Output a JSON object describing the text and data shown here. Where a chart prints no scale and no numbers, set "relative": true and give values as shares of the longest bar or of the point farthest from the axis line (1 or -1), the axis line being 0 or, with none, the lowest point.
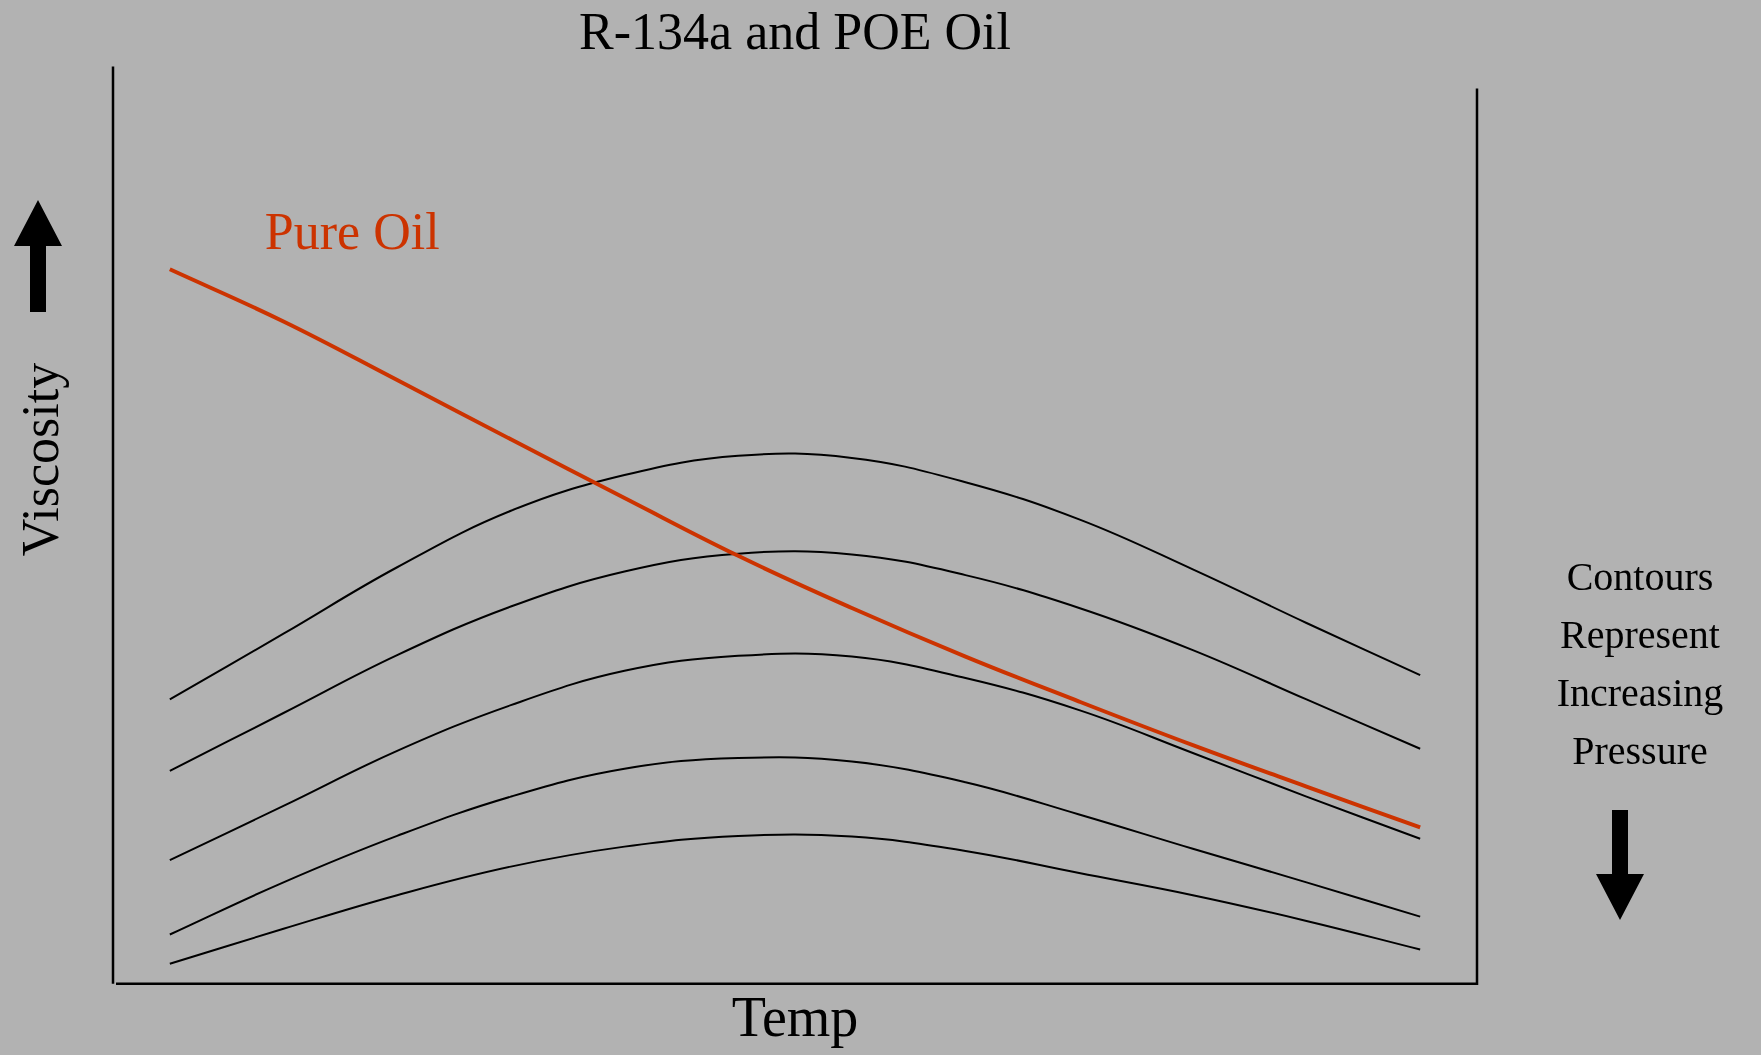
{
  "chart_data": {
    "type": "line",
    "title": "R-134a and POE Oil",
    "xlabel": "Temp",
    "ylabel": "Viscosity",
    "relative": true,
    "legend": false,
    "grid": false,
    "categories": [
      null,
      null,
      null,
      null,
      null,
      null,
      null,
      null,
      null,
      null,
      null,
      null
    ],
    "series": [
      {
        "name": "Pure Oil",
        "color": "#cc3300",
        "values": [
          1.0,
          0.927,
          0.845,
          0.762,
          0.68,
          0.599,
          0.526,
          0.458,
          0.395,
          0.334,
          0.276,
          0.219
        ]
      },
      {
        "color": "#000000",
        "values": [
          0.398,
          0.49,
          0.583,
          0.662,
          0.712,
          0.739,
          0.736,
          0.702,
          0.65,
          0.58,
          0.505,
          0.432
        ]
      },
      {
        "color": "#000000",
        "values": [
          0.298,
          0.379,
          0.46,
          0.528,
          0.577,
          0.602,
          0.601,
          0.572,
          0.526,
          0.467,
          0.398,
          0.329
        ]
      },
      {
        "color": "#000000",
        "values": [
          0.173,
          0.249,
          0.326,
          0.39,
          0.438,
          0.459,
          0.458,
          0.428,
          0.383,
          0.323,
          0.262,
          0.203
        ]
      },
      {
        "color": "#000000",
        "values": [
          0.069,
          0.142,
          0.207,
          0.262,
          0.301,
          0.316,
          0.311,
          0.282,
          0.237,
          0.189,
          0.142,
          0.094
        ]
      },
      {
        "color": "#000000",
        "values": [
          0.028,
          0.077,
          0.124,
          0.164,
          0.192,
          0.207,
          0.206,
          0.186,
          0.155,
          0.124,
          0.088,
          0.048
        ]
      }
    ],
    "annotations": [
      "Contours Represent Increasing Pressure"
    ]
  }
}
